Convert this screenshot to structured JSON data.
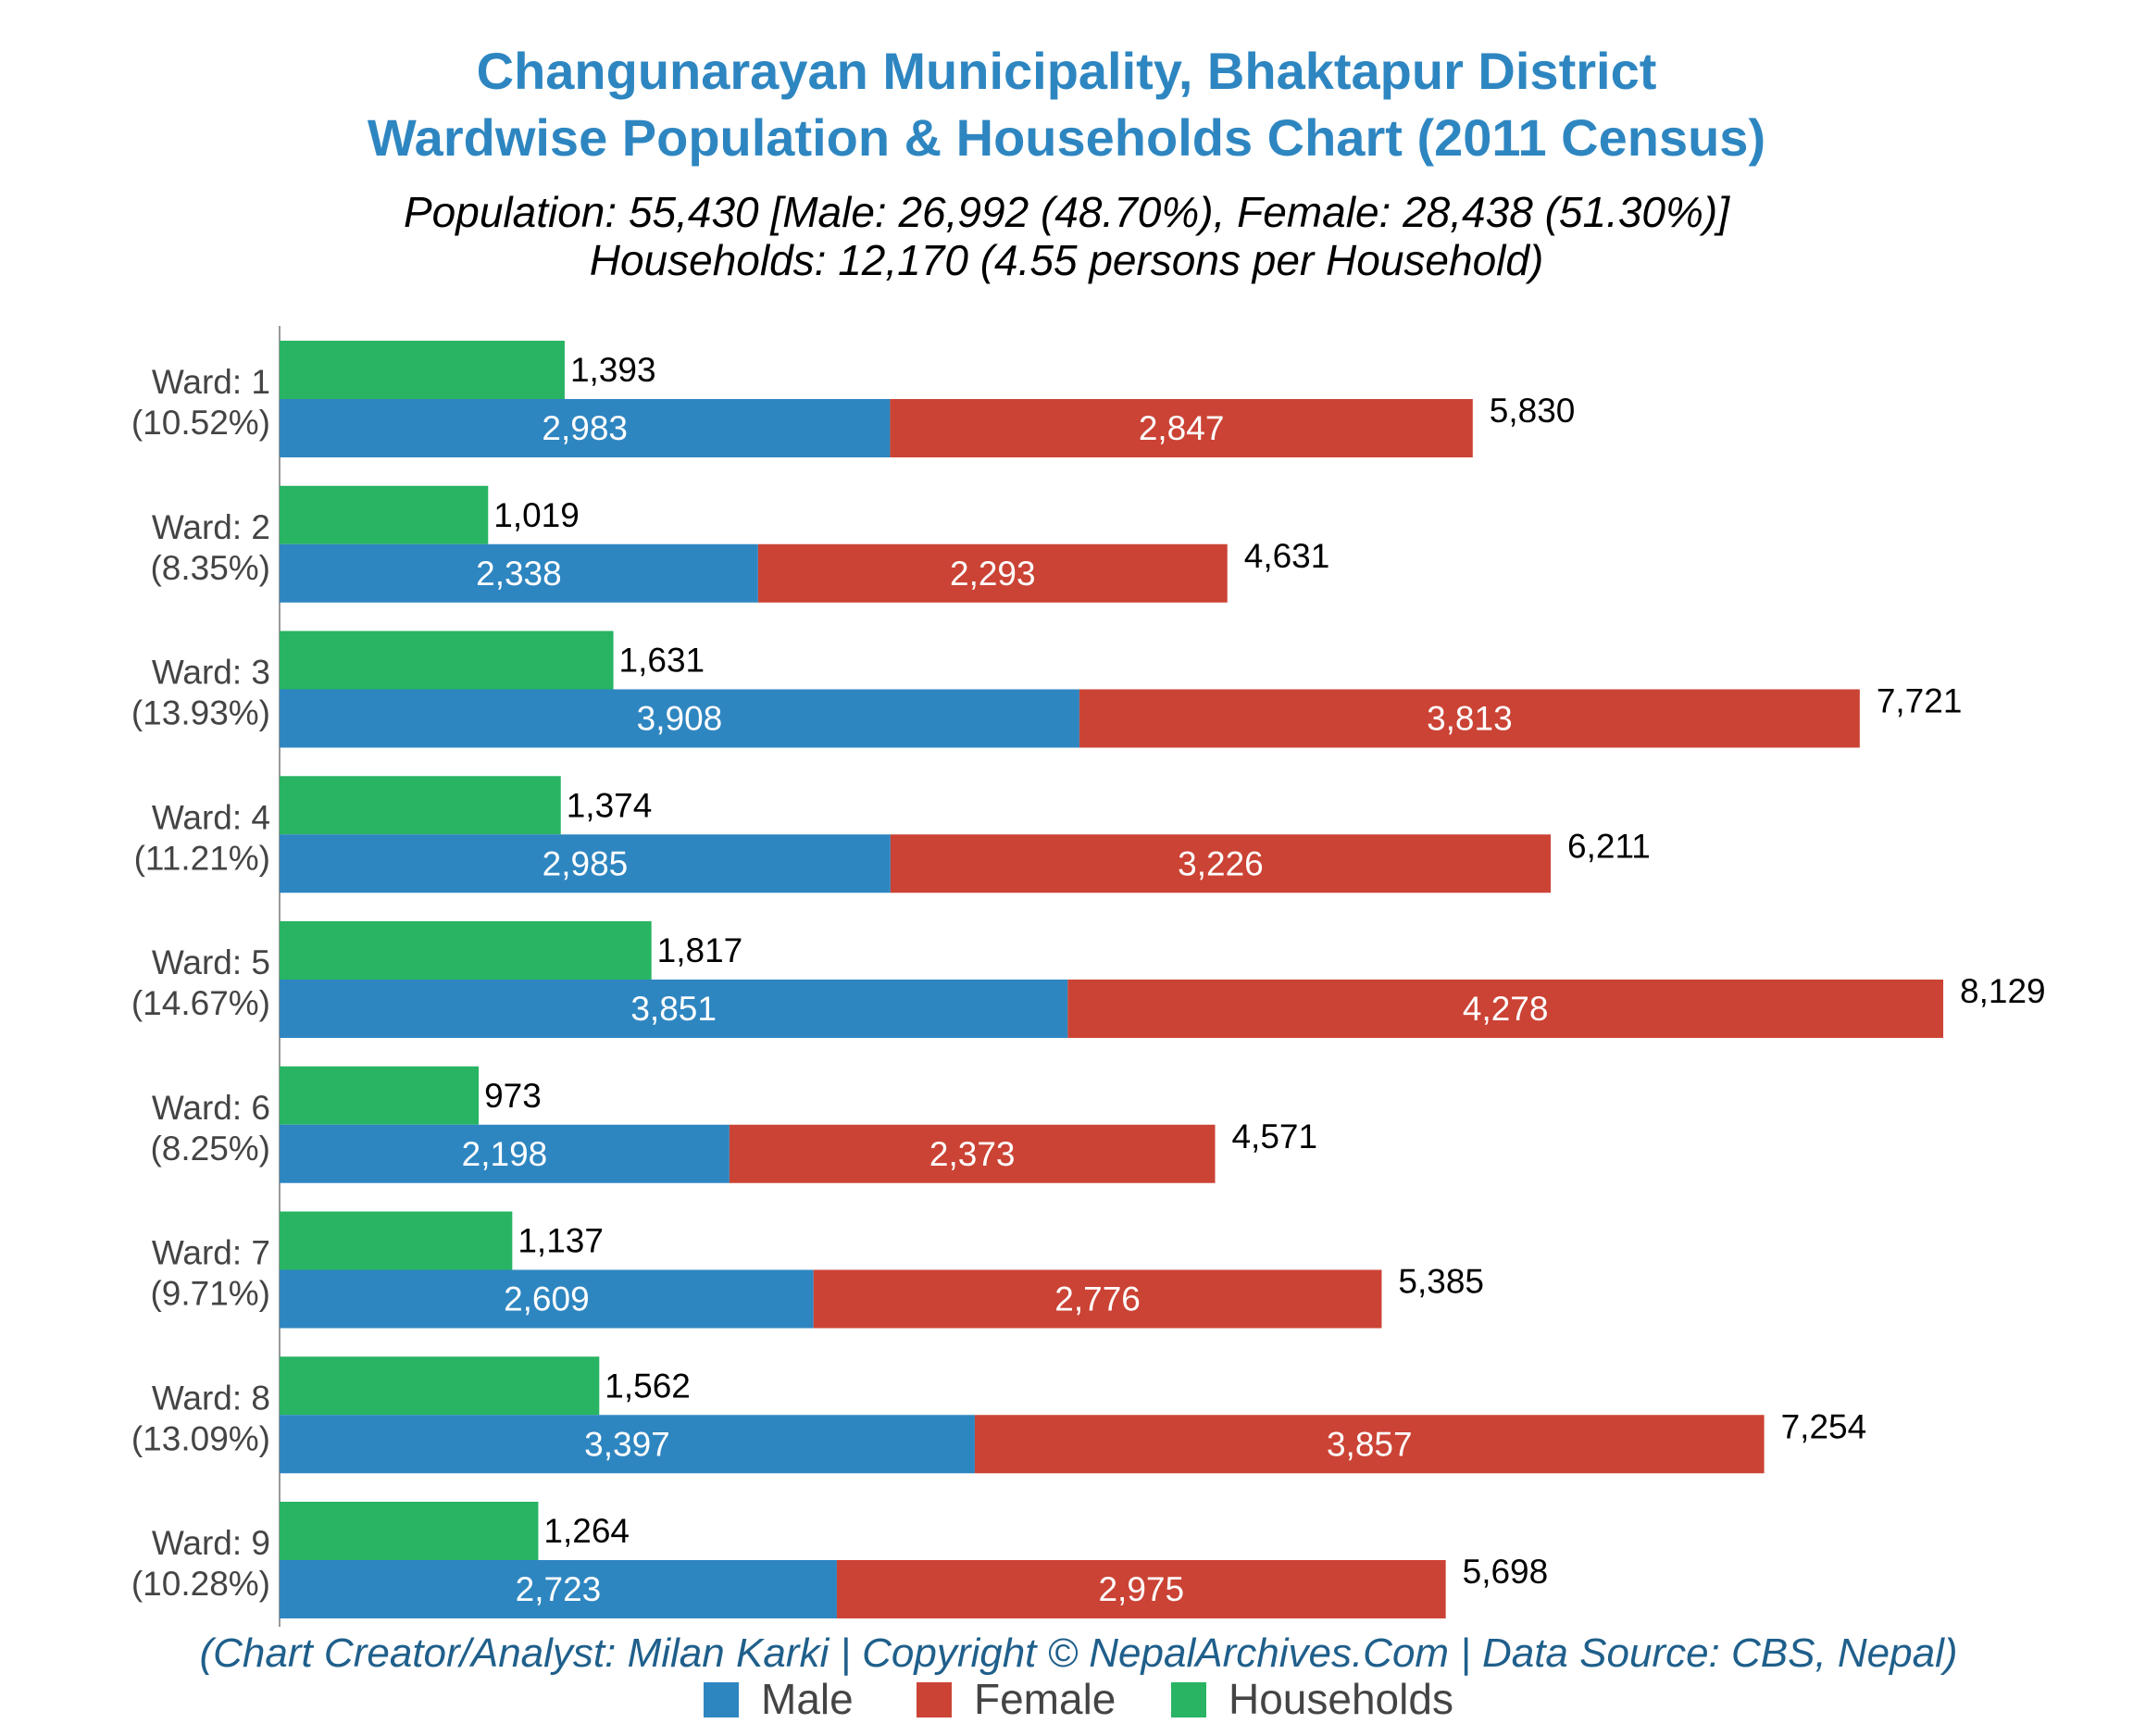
{
  "chart_data": {
    "type": "bar",
    "title_lines": [
      "Changunarayan Municipality, Bhaktapur District",
      "Wardwise Population & Households Chart (2011 Census)"
    ],
    "subtitle_lines": [
      "Population: 55,430 [Male: 26,992 (48.70%), Female: 28,438 (51.30%)]",
      "Households: 12,170 (4.55 persons per Household)"
    ],
    "footer": "(Chart Creator/Analyst: Milan Karki | Copyright © NepalArchives.Com | Data Source: CBS, Nepal)",
    "orientation": "horizontal",
    "stacked_series": [
      "Male",
      "Female"
    ],
    "categories": [
      "Ward: 1",
      "Ward: 2",
      "Ward: 3",
      "Ward: 4",
      "Ward: 5",
      "Ward: 6",
      "Ward: 7",
      "Ward: 8",
      "Ward: 9"
    ],
    "category_shares": [
      "(10.52%)",
      "(8.35%)",
      "(13.93%)",
      "(11.21%)",
      "(14.67%)",
      "(8.25%)",
      "(9.71%)",
      "(13.09%)",
      "(10.28%)"
    ],
    "series": [
      {
        "name": "Households",
        "values": [
          1393,
          1019,
          1631,
          1374,
          1817,
          973,
          1137,
          1562,
          1264
        ],
        "labels": [
          "1,393",
          "1,019",
          "1,631",
          "1,374",
          "1,817",
          "973",
          "1,137",
          "1,562",
          "1,264"
        ]
      },
      {
        "name": "Male",
        "values": [
          2983,
          2338,
          3908,
          2985,
          3851,
          2198,
          2609,
          3397,
          2723
        ],
        "labels": [
          "2,983",
          "2,338",
          "3,908",
          "2,985",
          "3,851",
          "2,198",
          "2,609",
          "3,397",
          "2,723"
        ]
      },
      {
        "name": "Female",
        "values": [
          2847,
          2293,
          3813,
          3226,
          4278,
          2373,
          2776,
          3857,
          2975
        ],
        "labels": [
          "2,847",
          "2,293",
          "3,813",
          "3,226",
          "4,278",
          "2,373",
          "2,776",
          "3,857",
          "2,975"
        ]
      }
    ],
    "totals": [
      5830,
      4631,
      7721,
      6211,
      8129,
      4571,
      5385,
      7254,
      5698
    ],
    "total_labels": [
      "5,830",
      "4,631",
      "7,721",
      "6,211",
      "8,129",
      "4,571",
      "5,385",
      "7,254",
      "5,698"
    ],
    "legend": {
      "position": "bottom",
      "items": [
        "Male",
        "Female",
        "Households"
      ]
    },
    "colors": {
      "Male": "#2e86c1",
      "Female": "#cb4335",
      "Households": "#28b463",
      "title": "#2e86c1",
      "footer": "#1f5f8b",
      "label_dark": "#000000",
      "label_light": "#ffffff",
      "axis": "#999999",
      "category_text": "#444444",
      "legend_text": "#444444"
    },
    "xlim": [
      0,
      8450
    ],
    "grid": false,
    "x_axis_visible": false
  }
}
